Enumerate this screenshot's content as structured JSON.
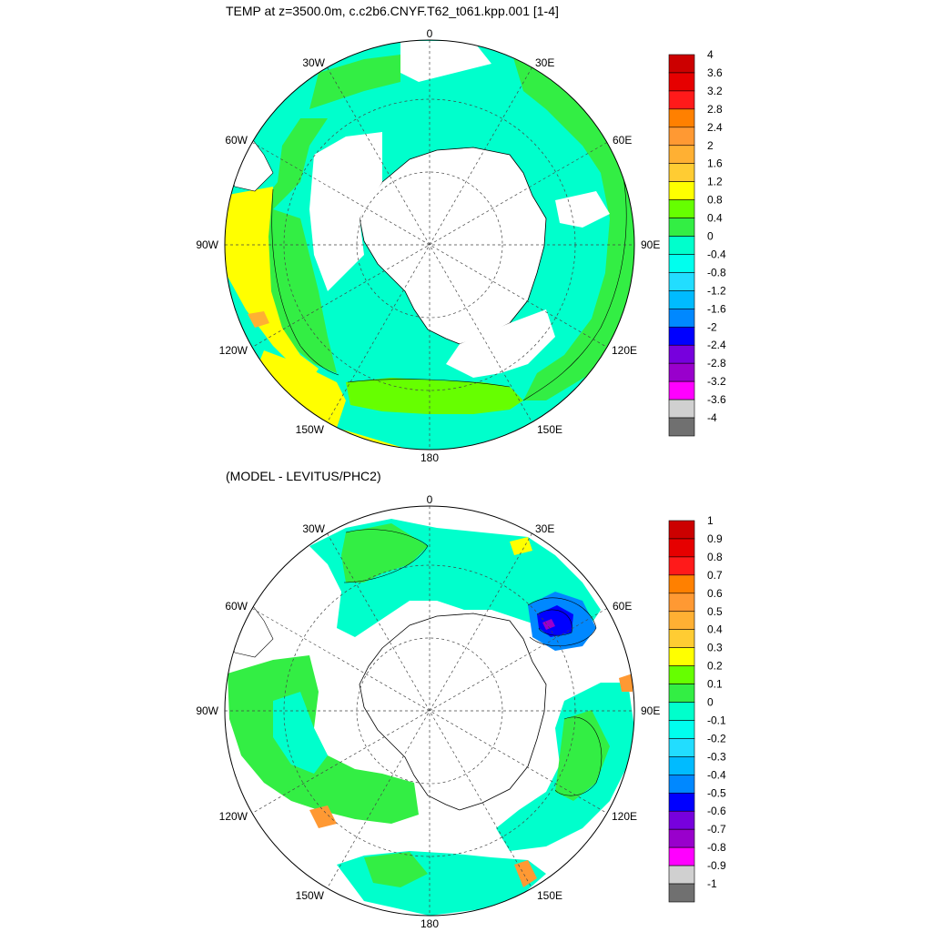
{
  "panels": [
    {
      "title": "TEMP at z=3500.0m, c.c2b6.CNYF.T62_t061.kpp.001 [1-4]",
      "longitude_labels": {
        "n": "0",
        "nne": "30E",
        "ene": "60E",
        "e": "90E",
        "ese": "120E",
        "sse": "150E",
        "s": "180",
        "ssw": "150W",
        "wsw": "120W",
        "w": "90W",
        "wnw": "60W",
        "nnw": "30W"
      },
      "colorbar": {
        "labels": [
          "4",
          "3.6",
          "3.2",
          "2.8",
          "2.4",
          "2",
          "1.6",
          "1.2",
          "0.8",
          "0.4",
          "0",
          "-0.4",
          "-0.8",
          "-1.2",
          "-1.6",
          "-2",
          "-2.4",
          "-2.8",
          "-3.2",
          "-3.6",
          "-4"
        ]
      }
    },
    {
      "title": "(MODEL - LEVITUS/PHC2)",
      "longitude_labels": {
        "n": "0",
        "nne": "30E",
        "ene": "60E",
        "e": "90E",
        "ese": "120E",
        "sse": "150E",
        "s": "180",
        "ssw": "150W",
        "wsw": "120W",
        "w": "90W",
        "wnw": "60W",
        "nnw": "30W"
      },
      "colorbar": {
        "labels": [
          "1",
          "0.9",
          "0.8",
          "0.7",
          "0.6",
          "0.5",
          "0.4",
          "0.3",
          "0.2",
          "0.1",
          "0",
          "-0.1",
          "-0.2",
          "-0.3",
          "-0.4",
          "-0.5",
          "-0.6",
          "-0.7",
          "-0.8",
          "-0.9",
          "-1"
        ]
      }
    }
  ],
  "palette": [
    "#cc0000",
    "#e60000",
    "#ff1a1a",
    "#ff8000",
    "#ff9933",
    "#ffb033",
    "#ffcc33",
    "#ffff00",
    "#66ff00",
    "#33ee44",
    "#00ffcc",
    "#00ffee",
    "#22ddff",
    "#00bbff",
    "#0088ff",
    "#0000ff",
    "#7700dd",
    "#9900cc",
    "#ff00ff",
    "#d0d0d0",
    "#707070"
  ],
  "colors": {
    "land": "#ffffff",
    "outline": "#000000",
    "grid": "#444444"
  }
}
